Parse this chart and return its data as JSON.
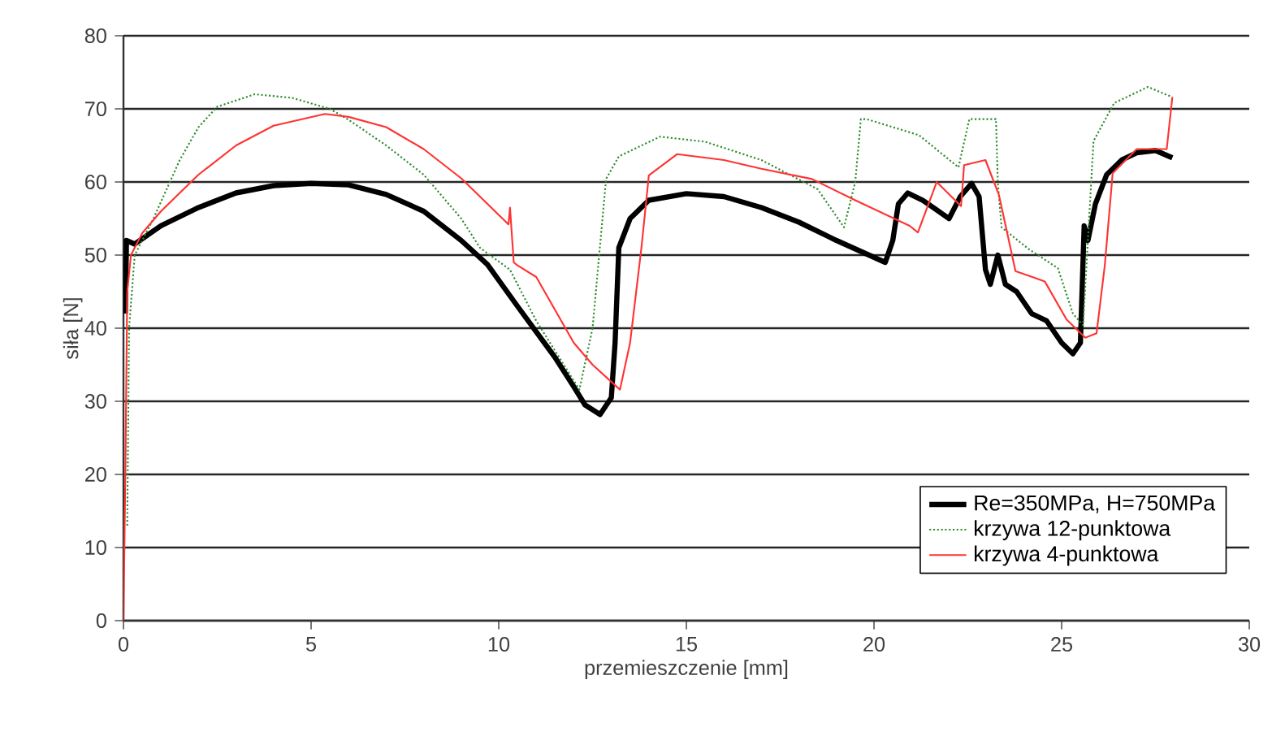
{
  "chart_data": {
    "type": "line",
    "xlabel": "przemieszczenie [mm]",
    "ylabel": "siła [N]",
    "xlim": [
      0,
      30
    ],
    "xticks": [
      0,
      5,
      10,
      15,
      20,
      25,
      30
    ],
    "ylim": [
      0,
      80
    ],
    "yticks": [
      0,
      10,
      20,
      30,
      40,
      50,
      60,
      70,
      80
    ],
    "grid": "y",
    "legend": "bottom right",
    "marker": "none",
    "series": [
      {
        "name": "Re=350MPa, H=750MPa",
        "color": "#000000",
        "line_style": "solid",
        "x": [
          0.05,
          0.08,
          0.3,
          1,
          2,
          3,
          4,
          5,
          6,
          7,
          8,
          9,
          9.7,
          10.5,
          11.5,
          12,
          12.3,
          12.7,
          13,
          13.1,
          13.2,
          13.5,
          14,
          15,
          16,
          17,
          18,
          19,
          20.3,
          20.5,
          20.65,
          20.9,
          21.3,
          22,
          22.3,
          22.6,
          22.8,
          22.97,
          23.1,
          23.3,
          23.5,
          23.8,
          24.2,
          24.6,
          25,
          25.3,
          25.5,
          25.6,
          25.7,
          25.9,
          26.2,
          26.6,
          27,
          27.5,
          27.95
        ],
        "values": [
          42,
          52,
          51.5,
          54,
          56.5,
          58.5,
          59.5,
          59.8,
          59.6,
          58.3,
          56,
          52,
          48.7,
          43,
          36,
          32,
          29.5,
          28.2,
          30.5,
          38,
          51,
          55,
          57.5,
          58.4,
          58,
          56.5,
          54.5,
          52,
          49,
          52,
          57,
          58.5,
          57.5,
          55,
          58,
          59.8,
          58,
          48,
          46,
          50,
          46,
          45,
          42,
          41,
          38,
          36.5,
          38,
          54,
          52,
          57,
          61,
          63,
          64,
          64.3,
          63.3
        ]
      },
      {
        "name": "krzywa 12-punktowa",
        "color": "#2e8b2e",
        "line_style": "dotted",
        "x": [
          0.1,
          0.15,
          0.3,
          0.8,
          1.5,
          2,
          2.5,
          3.5,
          4.5,
          5.5,
          6,
          7,
          8,
          9,
          9.5,
          10.3,
          11,
          12.15,
          12.5,
          12.86,
          13.2,
          14.3,
          15.5,
          17,
          18.5,
          19.2,
          19.5,
          19.65,
          19.8,
          21.2,
          22.25,
          22.54,
          23.25,
          23.3,
          23.4,
          24.1,
          24.9,
          25.3,
          25.57,
          25.85,
          26.4,
          27.3,
          27.95
        ],
        "values": [
          13,
          40,
          50,
          55,
          63,
          67.5,
          70.3,
          72,
          71.5,
          70,
          68.5,
          65,
          61,
          55,
          51,
          48,
          41,
          31.6,
          40,
          60.4,
          63.5,
          66.2,
          65.5,
          63,
          59,
          53.8,
          60,
          68.6,
          68.6,
          66.4,
          62,
          68.6,
          68.6,
          59.8,
          53.8,
          50.9,
          48.2,
          42,
          40.4,
          65.6,
          70.8,
          73,
          71.6
        ]
      },
      {
        "name": "krzywa 4-punktowa",
        "color": "#ff3333",
        "line_style": "solid",
        "x": [
          0,
          0.05,
          0.1,
          0.2,
          0.5,
          1,
          2,
          3,
          4,
          5.37,
          6,
          7,
          8,
          9,
          10.26,
          10.3,
          10.4,
          10.5,
          11,
          12,
          12.5,
          13.23,
          13.5,
          13.8,
          14,
          14.75,
          16,
          17,
          18.35,
          19.5,
          20.95,
          21.17,
          21.67,
          22.32,
          22.4,
          22.97,
          23.33,
          23.77,
          24.55,
          25.13,
          25.63,
          25.93,
          26.15,
          26.36,
          27,
          27.8,
          27.95
        ],
        "values": [
          0,
          20,
          45,
          50,
          53,
          56,
          61,
          65,
          67.7,
          69.3,
          68.9,
          67.5,
          64.5,
          60.5,
          54.2,
          56.5,
          49,
          48.6,
          47,
          38,
          35,
          31.6,
          38,
          50.9,
          60.9,
          63.8,
          63,
          61.8,
          60.4,
          57.5,
          54,
          53.1,
          60,
          56.7,
          62.3,
          63,
          58.2,
          47.8,
          46.4,
          41.2,
          38.7,
          39.3,
          48.6,
          61.2,
          64.5,
          64.5,
          71.6
        ]
      }
    ]
  }
}
